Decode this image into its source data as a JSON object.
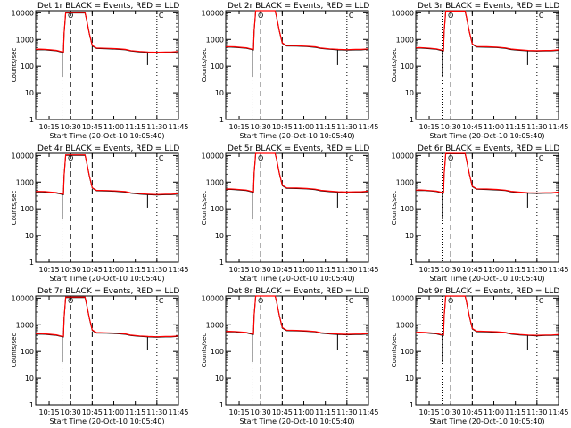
{
  "figure": {
    "common": {
      "xlabel": "Start Time (20-Oct-10 10:05:40)",
      "ylabel": "Counts/sec",
      "x_tick_labels": [
        "10:15",
        "10:30",
        "10:45",
        "11:00",
        "11:15",
        "11:30",
        "11:45"
      ],
      "y_tick_labels": [
        "1",
        "10",
        "100",
        "1000",
        "10000"
      ],
      "marker_labels": [
        "O",
        "C"
      ]
    }
  },
  "chart_data": [
    {
      "type": "line",
      "title": "Det 1r BLACK = Events, RED = LLD",
      "xlabel": "Start Time (20-Oct-10 10:05:40)",
      "ylabel": "Counts/sec",
      "yscale": "log",
      "ylim": [
        1,
        12000
      ],
      "xlim": [
        "10:05:40",
        "11:45"
      ],
      "x_ticks": [
        "10:15",
        "10:30",
        "10:45",
        "11:00",
        "11:15",
        "11:30",
        "11:45"
      ],
      "y_ticks": [
        1,
        10,
        100,
        1000,
        10000
      ],
      "series": [
        {
          "name": "Events",
          "color": "#000000"
        },
        {
          "name": "LLD",
          "color": "#ff0000"
        }
      ],
      "vertical_lines": [
        {
          "style": "dotted",
          "x": "10:24"
        },
        {
          "style": "dashed",
          "x": "10:30"
        },
        {
          "style": "dashed",
          "x": "10:45"
        },
        {
          "style": "dotted",
          "x": "11:30"
        }
      ],
      "markers": [
        {
          "label": "O",
          "x": "10:30"
        },
        {
          "label": "C",
          "x": "11:33"
        }
      ],
      "grid": false
    },
    {
      "type": "line",
      "title": "Det 2r BLACK = Events, RED = LLD",
      "xlabel": "Start Time (20-Oct-10 10:05:40)",
      "ylabel": "Counts/sec",
      "yscale": "log",
      "ylim": [
        1,
        12000
      ],
      "xlim": [
        "10:05:40",
        "11:45"
      ],
      "x_ticks": [
        "10:15",
        "10:30",
        "10:45",
        "11:00",
        "11:15",
        "11:30",
        "11:45"
      ],
      "y_ticks": [
        1,
        10,
        100,
        1000,
        10000
      ],
      "series": [
        {
          "name": "Events",
          "color": "#000000"
        },
        {
          "name": "LLD",
          "color": "#ff0000"
        }
      ],
      "vertical_lines": [
        {
          "style": "dotted",
          "x": "10:24"
        },
        {
          "style": "dashed",
          "x": "10:30"
        },
        {
          "style": "dashed",
          "x": "10:45"
        },
        {
          "style": "dotted",
          "x": "11:30"
        }
      ],
      "markers": [
        {
          "label": "O",
          "x": "10:30"
        },
        {
          "label": "C",
          "x": "11:33"
        }
      ],
      "grid": false
    },
    {
      "type": "line",
      "title": "Det 3r BLACK = Events, RED = LLD",
      "xlabel": "Start Time (20-Oct-10 10:05:40)",
      "ylabel": "Counts/sec",
      "yscale": "log",
      "ylim": [
        1,
        12000
      ],
      "xlim": [
        "10:05:40",
        "11:45"
      ],
      "x_ticks": [
        "10:15",
        "10:30",
        "10:45",
        "11:00",
        "11:15",
        "11:30",
        "11:45"
      ],
      "y_ticks": [
        1,
        10,
        100,
        1000,
        10000
      ],
      "series": [
        {
          "name": "Events",
          "color": "#000000"
        },
        {
          "name": "LLD",
          "color": "#ff0000"
        }
      ],
      "vertical_lines": [
        {
          "style": "dotted",
          "x": "10:24"
        },
        {
          "style": "dashed",
          "x": "10:30"
        },
        {
          "style": "dashed",
          "x": "10:45"
        },
        {
          "style": "dotted",
          "x": "11:30"
        }
      ],
      "markers": [
        {
          "label": "O",
          "x": "10:30"
        },
        {
          "label": "C",
          "x": "11:33"
        }
      ],
      "grid": false
    },
    {
      "type": "line",
      "title": "Det 4r BLACK = Events, RED = LLD",
      "xlabel": "Start Time (20-Oct-10 10:05:40)",
      "ylabel": "Counts/sec",
      "yscale": "log",
      "ylim": [
        1,
        12000
      ],
      "xlim": [
        "10:05:40",
        "11:45"
      ],
      "x_ticks": [
        "10:15",
        "10:30",
        "10:45",
        "11:00",
        "11:15",
        "11:30",
        "11:45"
      ],
      "y_ticks": [
        1,
        10,
        100,
        1000,
        10000
      ],
      "series": [
        {
          "name": "Events",
          "color": "#000000"
        },
        {
          "name": "LLD",
          "color": "#ff0000"
        }
      ],
      "vertical_lines": [
        {
          "style": "dotted",
          "x": "10:24"
        },
        {
          "style": "dashed",
          "x": "10:30"
        },
        {
          "style": "dashed",
          "x": "10:45"
        },
        {
          "style": "dotted",
          "x": "11:30"
        }
      ],
      "markers": [
        {
          "label": "O",
          "x": "10:30"
        },
        {
          "label": "C",
          "x": "11:33"
        }
      ],
      "grid": false
    },
    {
      "type": "line",
      "title": "Det 5r BLACK = Events, RED = LLD",
      "xlabel": "Start Time (20-Oct-10 10:05:40)",
      "ylabel": "Counts/sec",
      "yscale": "log",
      "ylim": [
        1,
        12000
      ],
      "xlim": [
        "10:05:40",
        "11:45"
      ],
      "x_ticks": [
        "10:15",
        "10:30",
        "10:45",
        "11:00",
        "11:15",
        "11:30",
        "11:45"
      ],
      "y_ticks": [
        1,
        10,
        100,
        1000,
        10000
      ],
      "series": [
        {
          "name": "Events",
          "color": "#000000"
        },
        {
          "name": "LLD",
          "color": "#ff0000"
        }
      ],
      "vertical_lines": [
        {
          "style": "dotted",
          "x": "10:24"
        },
        {
          "style": "dashed",
          "x": "10:30"
        },
        {
          "style": "dashed",
          "x": "10:45"
        },
        {
          "style": "dotted",
          "x": "11:30"
        }
      ],
      "markers": [
        {
          "label": "O",
          "x": "10:30"
        },
        {
          "label": "C",
          "x": "11:33"
        }
      ],
      "grid": false
    },
    {
      "type": "line",
      "title": "Det 6r BLACK = Events, RED = LLD",
      "xlabel": "Start Time (20-Oct-10 10:05:40)",
      "ylabel": "Counts/sec",
      "yscale": "log",
      "ylim": [
        1,
        12000
      ],
      "xlim": [
        "10:05:40",
        "11:45"
      ],
      "x_ticks": [
        "10:15",
        "10:30",
        "10:45",
        "11:00",
        "11:15",
        "11:30",
        "11:45"
      ],
      "y_ticks": [
        1,
        10,
        100,
        1000,
        10000
      ],
      "series": [
        {
          "name": "Events",
          "color": "#000000"
        },
        {
          "name": "LLD",
          "color": "#ff0000"
        }
      ],
      "vertical_lines": [
        {
          "style": "dotted",
          "x": "10:24"
        },
        {
          "style": "dashed",
          "x": "10:30"
        },
        {
          "style": "dashed",
          "x": "10:45"
        },
        {
          "style": "dotted",
          "x": "11:30"
        }
      ],
      "markers": [
        {
          "label": "O",
          "x": "10:30"
        },
        {
          "label": "C",
          "x": "11:33"
        }
      ],
      "grid": false
    },
    {
      "type": "line",
      "title": "Det 7r BLACK = Events, RED = LLD",
      "xlabel": "Start Time (20-Oct-10 10:05:40)",
      "ylabel": "Counts/sec",
      "yscale": "log",
      "ylim": [
        1,
        12000
      ],
      "xlim": [
        "10:05:40",
        "11:45"
      ],
      "x_ticks": [
        "10:15",
        "10:30",
        "10:45",
        "11:00",
        "11:15",
        "11:30",
        "11:45"
      ],
      "y_ticks": [
        1,
        10,
        100,
        1000,
        10000
      ],
      "series": [
        {
          "name": "Events",
          "color": "#000000"
        },
        {
          "name": "LLD",
          "color": "#ff0000"
        }
      ],
      "vertical_lines": [
        {
          "style": "dotted",
          "x": "10:24"
        },
        {
          "style": "dashed",
          "x": "10:30"
        },
        {
          "style": "dashed",
          "x": "10:45"
        },
        {
          "style": "dotted",
          "x": "11:30"
        }
      ],
      "markers": [
        {
          "label": "O",
          "x": "10:30"
        },
        {
          "label": "C",
          "x": "11:33"
        }
      ],
      "grid": false
    },
    {
      "type": "line",
      "title": "Det 8r BLACK = Events, RED = LLD",
      "xlabel": "Start Time (20-Oct-10 10:05:40)",
      "ylabel": "Counts/sec",
      "yscale": "log",
      "ylim": [
        1,
        12000
      ],
      "xlim": [
        "10:05:40",
        "11:45"
      ],
      "x_ticks": [
        "10:15",
        "10:30",
        "10:45",
        "11:00",
        "11:15",
        "11:30",
        "11:45"
      ],
      "y_ticks": [
        1,
        10,
        100,
        1000,
        10000
      ],
      "series": [
        {
          "name": "Events",
          "color": "#000000"
        },
        {
          "name": "LLD",
          "color": "#ff0000"
        }
      ],
      "vertical_lines": [
        {
          "style": "dotted",
          "x": "10:24"
        },
        {
          "style": "dashed",
          "x": "10:30"
        },
        {
          "style": "dashed",
          "x": "10:45"
        },
        {
          "style": "dotted",
          "x": "11:30"
        }
      ],
      "markers": [
        {
          "label": "O",
          "x": "10:30"
        },
        {
          "label": "C",
          "x": "11:33"
        }
      ],
      "grid": false
    },
    {
      "type": "line",
      "title": "Det 9r BLACK = Events, RED = LLD",
      "xlabel": "Start Time (20-Oct-10 10:05:40)",
      "ylabel": "Counts/sec",
      "yscale": "log",
      "ylim": [
        1,
        12000
      ],
      "xlim": [
        "10:05:40",
        "11:45"
      ],
      "x_ticks": [
        "10:15",
        "10:30",
        "10:45",
        "11:00",
        "11:15",
        "11:30",
        "11:45"
      ],
      "y_ticks": [
        1,
        10,
        100,
        1000,
        10000
      ],
      "series": [
        {
          "name": "Events",
          "color": "#000000"
        },
        {
          "name": "LLD",
          "color": "#ff0000"
        }
      ],
      "vertical_lines": [
        {
          "style": "dotted",
          "x": "10:24"
        },
        {
          "style": "dashed",
          "x": "10:30"
        },
        {
          "style": "dashed",
          "x": "10:45"
        },
        {
          "style": "dotted",
          "x": "11:30"
        }
      ],
      "markers": [
        {
          "label": "O",
          "x": "10:30"
        },
        {
          "label": "C",
          "x": "11:33"
        }
      ],
      "grid": false
    }
  ]
}
